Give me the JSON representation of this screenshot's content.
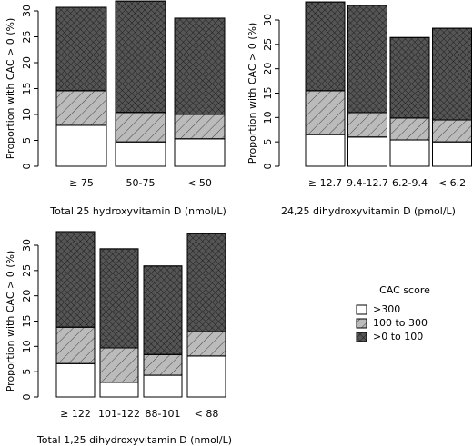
{
  "chart_data": [
    {
      "type": "stacked_bar",
      "ylabel": "Proportion with CAC > 0 (%)",
      "xlabel": "Total 25 hydroxyvitamin D (nmol/L)",
      "categories": [
        "≥ 75",
        "50-75",
        "< 50"
      ],
      "series": [
        {
          "color": "#ffffff",
          "pattern": "none",
          "values": [
            7.9,
            4.7,
            5.3
          ]
        },
        {
          "color": "#bbbbbb",
          "pattern": "hatch",
          "values": [
            6.7,
            5.7,
            4.7
          ]
        },
        {
          "color": "#555555",
          "pattern": "crosshatch",
          "values": [
            16.1,
            21.5,
            18.6
          ]
        }
      ],
      "ylim": [
        0,
        32
      ],
      "yticks": [
        0,
        5,
        10,
        15,
        20,
        25,
        30
      ]
    },
    {
      "type": "stacked_bar",
      "ylabel": "Proportion with CAC > 0 (%)",
      "xlabel": "24,25 dihydroxyvitamin D (pmol/L)",
      "categories": [
        "≥ 12.7",
        "9.4-12.7",
        "6.2-9.4",
        "< 6.2"
      ],
      "series": [
        {
          "color": "#ffffff",
          "pattern": "none",
          "values": [
            6.5,
            6.0,
            5.4,
            5.0
          ]
        },
        {
          "color": "#bbbbbb",
          "pattern": "hatch",
          "values": [
            9.0,
            5.0,
            4.5,
            4.5
          ]
        },
        {
          "color": "#555555",
          "pattern": "crosshatch",
          "values": [
            18.2,
            22.0,
            16.5,
            18.8
          ]
        }
      ],
      "ylim": [
        0,
        34
      ],
      "yticks": [
        0,
        5,
        10,
        15,
        20,
        25,
        30
      ]
    },
    {
      "type": "stacked_bar",
      "ylabel": "Proportion with CAC > 0 (%)",
      "xlabel": "Total 1,25 dihydroxyvitamin D (nmol/L)",
      "categories": [
        "≥ 122",
        "101-122",
        "88-101",
        "< 88"
      ],
      "legend_title": "CAC score",
      "series": [
        {
          "name": ">300",
          "color": "#ffffff",
          "pattern": "none",
          "values": [
            6.6,
            2.9,
            4.3,
            8.1
          ]
        },
        {
          "name": "100 to 300",
          "color": "#bbbbbb",
          "pattern": "hatch",
          "values": [
            7.2,
            6.8,
            4.1,
            4.8
          ]
        },
        {
          "name": ">0 to 100",
          "color": "#555555",
          "pattern": "crosshatch",
          "values": [
            18.9,
            19.6,
            17.5,
            19.4
          ]
        }
      ],
      "ylim": [
        0,
        33
      ],
      "yticks": [
        0,
        5,
        10,
        15,
        20,
        25,
        30
      ]
    }
  ]
}
